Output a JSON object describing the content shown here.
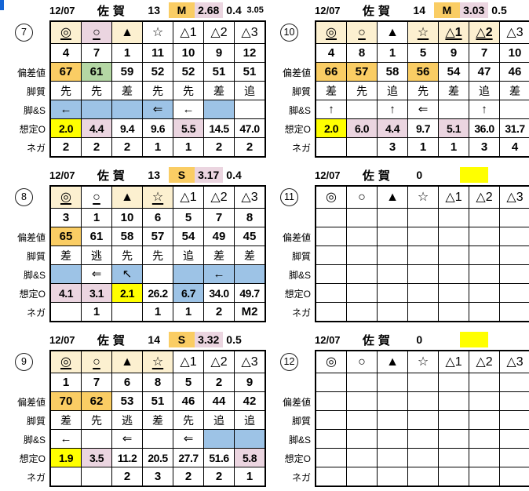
{
  "colors": {
    "orange": "#FACD64",
    "green": "#B4D7A4",
    "cream": "#FCF0D0",
    "pink": "#EBD5E0",
    "blue": "#9DC3E6",
    "yellow": "#FFFF00",
    "marker_blue": "#1565D6"
  },
  "row_labels": {
    "hensachi": "偏差値",
    "kyakushitsu": "脚質",
    "kyaku_s": "脚&S",
    "soutei_o": "想定O",
    "nega": "ネガ"
  },
  "blocks": [
    {
      "num": "7",
      "header": {
        "date": "12/07",
        "venue": "佐賀",
        "race": "13",
        "cls": "M",
        "cls_bg": "orange",
        "odds": "2.68",
        "odds_bg": "pink",
        "v2": "0.4",
        "extra": "3.05"
      },
      "symbols": [
        {
          "t": "◎",
          "bg": "cream",
          "u": true
        },
        {
          "t": "○",
          "bg": "pink",
          "u": true
        },
        {
          "t": "▲",
          "bg": "cream"
        },
        {
          "t": "☆"
        },
        {
          "t": "△1"
        },
        {
          "t": "△2"
        },
        {
          "t": "△3"
        }
      ],
      "numbers": [
        "4",
        "7",
        "1",
        "11",
        "10",
        "9",
        "12"
      ],
      "hensachi": [
        {
          "v": "67",
          "bg": "orange"
        },
        {
          "v": "61",
          "bg": "green"
        },
        {
          "v": "59"
        },
        {
          "v": "52"
        },
        {
          "v": "52"
        },
        {
          "v": "51"
        },
        {
          "v": "51"
        }
      ],
      "kyakushitsu": [
        "先",
        "先",
        "差",
        "先",
        "先",
        "差",
        "追"
      ],
      "kyaku_s": [
        {
          "a": "←",
          "bg": "blue"
        },
        {
          "a": "",
          "bg": "blue"
        },
        {
          "a": "",
          "bg": "blue"
        },
        {
          "a": "⇐",
          "bg": "blue"
        },
        {
          "a": "←"
        },
        {
          "a": "",
          "bg": "blue"
        },
        {
          "a": ""
        }
      ],
      "soutei_o": [
        {
          "v": "2.0",
          "bg": "yellow"
        },
        {
          "v": "4.4",
          "bg": "pink"
        },
        {
          "v": "9.4"
        },
        {
          "v": "9.6"
        },
        {
          "v": "5.5",
          "bg": "pink"
        },
        {
          "v": "14.5"
        },
        {
          "v": "47.0"
        }
      ],
      "nega": [
        "2",
        "2",
        "2",
        "1",
        "1",
        "2",
        "2"
      ]
    },
    {
      "num": "8",
      "header": {
        "date": "12/07",
        "venue": "佐賀",
        "race": "13",
        "cls": "S",
        "cls_bg": "orange",
        "odds": "3.17",
        "odds_bg": "pink",
        "v2": "0.4",
        "extra": ""
      },
      "symbols": [
        {
          "t": "◎",
          "bg": "cream",
          "u": true
        },
        {
          "t": "○",
          "u": true
        },
        {
          "t": "▲",
          "bg": "cream"
        },
        {
          "t": "☆",
          "bg": "cream",
          "u": true
        },
        {
          "t": "△1"
        },
        {
          "t": "△2"
        },
        {
          "t": "△3"
        }
      ],
      "numbers": [
        "3",
        "1",
        "10",
        "6",
        "5",
        "7",
        "8"
      ],
      "hensachi": [
        {
          "v": "65",
          "bg": "orange"
        },
        {
          "v": "61"
        },
        {
          "v": "58"
        },
        {
          "v": "57"
        },
        {
          "v": "54"
        },
        {
          "v": "49"
        },
        {
          "v": "45"
        }
      ],
      "kyakushitsu": [
        "差",
        "逃",
        "先",
        "先",
        "追",
        "差",
        "差"
      ],
      "kyaku_s": [
        {
          "a": "",
          "bg": "blue"
        },
        {
          "a": "⇐"
        },
        {
          "a": "↖",
          "bg": "blue"
        },
        {
          "a": ""
        },
        {
          "a": "",
          "bg": "blue"
        },
        {
          "a": "←",
          "bg": "blue"
        },
        {
          "a": "",
          "bg": "blue"
        }
      ],
      "soutei_o": [
        {
          "v": "4.1",
          "bg": "pink"
        },
        {
          "v": "3.1",
          "bg": "pink"
        },
        {
          "v": "2.1",
          "bg": "yellow"
        },
        {
          "v": "26.2"
        },
        {
          "v": "6.7",
          "bg": "blue"
        },
        {
          "v": "34.0"
        },
        {
          "v": "49.7"
        }
      ],
      "nega": [
        "",
        "1",
        "",
        "1",
        "1",
        "2",
        "M2"
      ]
    },
    {
      "num": "9",
      "header": {
        "date": "12/07",
        "venue": "佐賀",
        "race": "14",
        "cls": "S",
        "cls_bg": "orange",
        "odds": "3.32",
        "odds_bg": "pink",
        "v2": "0.5",
        "extra": ""
      },
      "symbols": [
        {
          "t": "◎",
          "bg": "cream",
          "u": true
        },
        {
          "t": "○",
          "bg": "cream",
          "u": true
        },
        {
          "t": "▲",
          "bg": "cream"
        },
        {
          "t": "☆",
          "bg": "cream",
          "u": true
        },
        {
          "t": "△1"
        },
        {
          "t": "△2"
        },
        {
          "t": "△3"
        }
      ],
      "numbers": [
        "1",
        "7",
        "6",
        "8",
        "5",
        "2",
        "9"
      ],
      "hensachi": [
        {
          "v": "70",
          "bg": "orange"
        },
        {
          "v": "62",
          "bg": "orange"
        },
        {
          "v": "53"
        },
        {
          "v": "51"
        },
        {
          "v": "46"
        },
        {
          "v": "44"
        },
        {
          "v": "42"
        }
      ],
      "kyakushitsu": [
        "差",
        "先",
        "逃",
        "差",
        "先",
        "追",
        "追"
      ],
      "kyaku_s": [
        {
          "a": "←"
        },
        {
          "a": ""
        },
        {
          "a": "⇐"
        },
        {
          "a": ""
        },
        {
          "a": "⇐"
        },
        {
          "a": "",
          "bg": "blue"
        },
        {
          "a": "",
          "bg": "blue"
        }
      ],
      "soutei_o": [
        {
          "v": "1.9",
          "bg": "yellow"
        },
        {
          "v": "3.5",
          "bg": "pink"
        },
        {
          "v": "11.2"
        },
        {
          "v": "20.5"
        },
        {
          "v": "27.7"
        },
        {
          "v": "51.6"
        },
        {
          "v": "5.8",
          "bg": "pink"
        }
      ],
      "nega": [
        "",
        "",
        "2",
        "3",
        "2",
        "2",
        "1"
      ]
    },
    {
      "num": "10",
      "header": {
        "date": "12/07",
        "venue": "佐賀",
        "race": "14",
        "cls": "M",
        "cls_bg": "orange",
        "odds": "3.03",
        "odds_bg": "pink",
        "v2": "0.5",
        "extra": ""
      },
      "symbols": [
        {
          "t": "◎",
          "bg": "cream",
          "u": true
        },
        {
          "t": "○",
          "bg": "cream",
          "u": true
        },
        {
          "t": "▲"
        },
        {
          "t": "☆",
          "bg": "cream",
          "u": true
        },
        {
          "t": "△1",
          "bg": "cream",
          "u": true,
          "b": true
        },
        {
          "t": "△2",
          "bg": "cream",
          "u": true,
          "b": true
        },
        {
          "t": "△3"
        }
      ],
      "numbers": [
        "4",
        "8",
        "1",
        "5",
        "9",
        "7",
        "10"
      ],
      "hensachi": [
        {
          "v": "66",
          "bg": "orange"
        },
        {
          "v": "57",
          "bg": "orange"
        },
        {
          "v": "58"
        },
        {
          "v": "56",
          "bg": "orange"
        },
        {
          "v": "54"
        },
        {
          "v": "47"
        },
        {
          "v": "46"
        }
      ],
      "kyakushitsu": [
        "差",
        "先",
        "追",
        "先",
        "差",
        "追",
        "差"
      ],
      "kyaku_s": [
        {
          "a": "↑"
        },
        {
          "a": ""
        },
        {
          "a": "↑"
        },
        {
          "a": "⇐"
        },
        {
          "a": ""
        },
        {
          "a": "↑"
        },
        {
          "a": ""
        }
      ],
      "soutei_o": [
        {
          "v": "2.0",
          "bg": "yellow"
        },
        {
          "v": "6.0",
          "bg": "pink"
        },
        {
          "v": "4.4",
          "bg": "pink"
        },
        {
          "v": "9.7"
        },
        {
          "v": "5.1",
          "bg": "pink"
        },
        {
          "v": "36.0"
        },
        {
          "v": "31.7"
        }
      ],
      "nega": [
        "",
        "",
        "3",
        "1",
        "1",
        "3",
        "4"
      ]
    },
    {
      "num": "11",
      "header": {
        "date": "12/07",
        "venue": "佐賀",
        "race": "0",
        "cls": "",
        "odds": "",
        "odds_bg": "yellow",
        "v2": "",
        "extra": ""
      },
      "symbols": [
        {
          "t": "◎"
        },
        {
          "t": "○"
        },
        {
          "t": "▲"
        },
        {
          "t": "☆"
        },
        {
          "t": "△1"
        },
        {
          "t": "△2"
        },
        {
          "t": "△3"
        }
      ],
      "numbers": [
        "",
        "",
        "",
        "",
        "",
        "",
        ""
      ],
      "hensachi": [
        {
          "v": ""
        },
        {
          "v": ""
        },
        {
          "v": ""
        },
        {
          "v": ""
        },
        {
          "v": ""
        },
        {
          "v": ""
        },
        {
          "v": ""
        }
      ],
      "kyakushitsu": [
        "",
        "",
        "",
        "",
        "",
        "",
        ""
      ],
      "kyaku_s": [
        {
          "a": ""
        },
        {
          "a": ""
        },
        {
          "a": ""
        },
        {
          "a": ""
        },
        {
          "a": ""
        },
        {
          "a": ""
        },
        {
          "a": ""
        }
      ],
      "soutei_o": [
        {
          "v": ""
        },
        {
          "v": ""
        },
        {
          "v": ""
        },
        {
          "v": ""
        },
        {
          "v": ""
        },
        {
          "v": ""
        },
        {
          "v": ""
        }
      ],
      "nega": [
        "",
        "",
        "",
        "",
        "",
        "",
        ""
      ]
    },
    {
      "num": "12",
      "header": {
        "date": "12/07",
        "venue": "佐賀",
        "race": "0",
        "cls": "",
        "odds": "",
        "odds_bg": "yellow",
        "v2": "",
        "extra": ""
      },
      "symbols": [
        {
          "t": "◎"
        },
        {
          "t": "○"
        },
        {
          "t": "▲"
        },
        {
          "t": "☆"
        },
        {
          "t": "△1"
        },
        {
          "t": "△2"
        },
        {
          "t": "△3"
        }
      ],
      "numbers": [
        "",
        "",
        "",
        "",
        "",
        "",
        ""
      ],
      "hensachi": [
        {
          "v": ""
        },
        {
          "v": ""
        },
        {
          "v": ""
        },
        {
          "v": ""
        },
        {
          "v": ""
        },
        {
          "v": ""
        },
        {
          "v": ""
        }
      ],
      "kyakushitsu": [
        "",
        "",
        "",
        "",
        "",
        "",
        ""
      ],
      "kyaku_s": [
        {
          "a": ""
        },
        {
          "a": ""
        },
        {
          "a": ""
        },
        {
          "a": ""
        },
        {
          "a": ""
        },
        {
          "a": ""
        },
        {
          "a": ""
        }
      ],
      "soutei_o": [
        {
          "v": ""
        },
        {
          "v": ""
        },
        {
          "v": ""
        },
        {
          "v": ""
        },
        {
          "v": ""
        },
        {
          "v": ""
        },
        {
          "v": ""
        }
      ],
      "nega": [
        "",
        "",
        "",
        "",
        "",
        "",
        ""
      ]
    }
  ]
}
